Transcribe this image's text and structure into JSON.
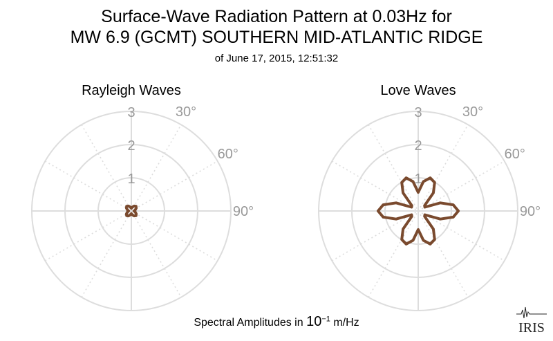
{
  "title_line1": "Surface-Wave Radiation Pattern at 0.03Hz for",
  "title_line2": "MW 6.9 (GCMT) SOUTHERN MID-ATLANTIC RIDGE",
  "subtitle": "of June 17, 2015, 12:51:32",
  "footer": {
    "prefix": "Spectral Amplitudes in ",
    "base": "10",
    "exponent": "−1",
    "unit": " m/Hz"
  },
  "logo_text": "IRIS",
  "colors": {
    "curve": "#7a4a2e",
    "grid": "#dddddd",
    "tick_text": "#999999"
  },
  "chart_data": [
    {
      "type": "polar",
      "title": "Rayleigh Waves",
      "radial_ticks": [
        "1",
        "2",
        "3"
      ],
      "radial_range": [
        0,
        3
      ],
      "angle_ticks": [
        "30°",
        "60°",
        "90°"
      ],
      "series": [
        {
          "theta_deg": [
            0,
            15,
            30,
            45,
            60,
            75,
            90,
            105,
            120,
            135,
            150,
            165,
            180,
            195,
            210,
            225,
            240,
            255,
            270,
            285,
            300,
            315,
            330,
            345
          ],
          "r": [
            0.08,
            0.12,
            0.17,
            0.2,
            0.17,
            0.12,
            0.08,
            0.12,
            0.17,
            0.2,
            0.17,
            0.12,
            0.08,
            0.12,
            0.17,
            0.2,
            0.17,
            0.12,
            0.08,
            0.12,
            0.17,
            0.2,
            0.17,
            0.12
          ]
        }
      ]
    },
    {
      "type": "polar",
      "title": "Love Waves",
      "radial_ticks": [
        "1",
        "2",
        "3"
      ],
      "radial_range": [
        0,
        3
      ],
      "angle_ticks": [
        "30°",
        "60°",
        "90°"
      ],
      "series": [
        {
          "theta_deg": [
            0,
            10,
            20,
            30,
            40,
            50,
            60,
            70,
            80,
            90,
            100,
            110,
            120,
            130,
            140,
            150,
            160,
            170,
            180,
            190,
            200,
            210,
            220,
            230,
            240,
            250,
            260,
            270,
            280,
            290,
            300,
            310,
            320,
            330,
            340,
            350
          ],
          "r": [
            0.56,
            0.9,
            1.06,
            0.99,
            0.71,
            0.25,
            0.23,
            0.71,
            1.07,
            1.21,
            1.07,
            0.71,
            0.23,
            0.25,
            0.71,
            0.99,
            1.06,
            0.9,
            0.56,
            0.9,
            1.06,
            0.99,
            0.71,
            0.25,
            0.23,
            0.71,
            1.07,
            1.21,
            1.07,
            0.71,
            0.23,
            0.25,
            0.71,
            0.99,
            1.06,
            0.9
          ]
        }
      ]
    }
  ]
}
